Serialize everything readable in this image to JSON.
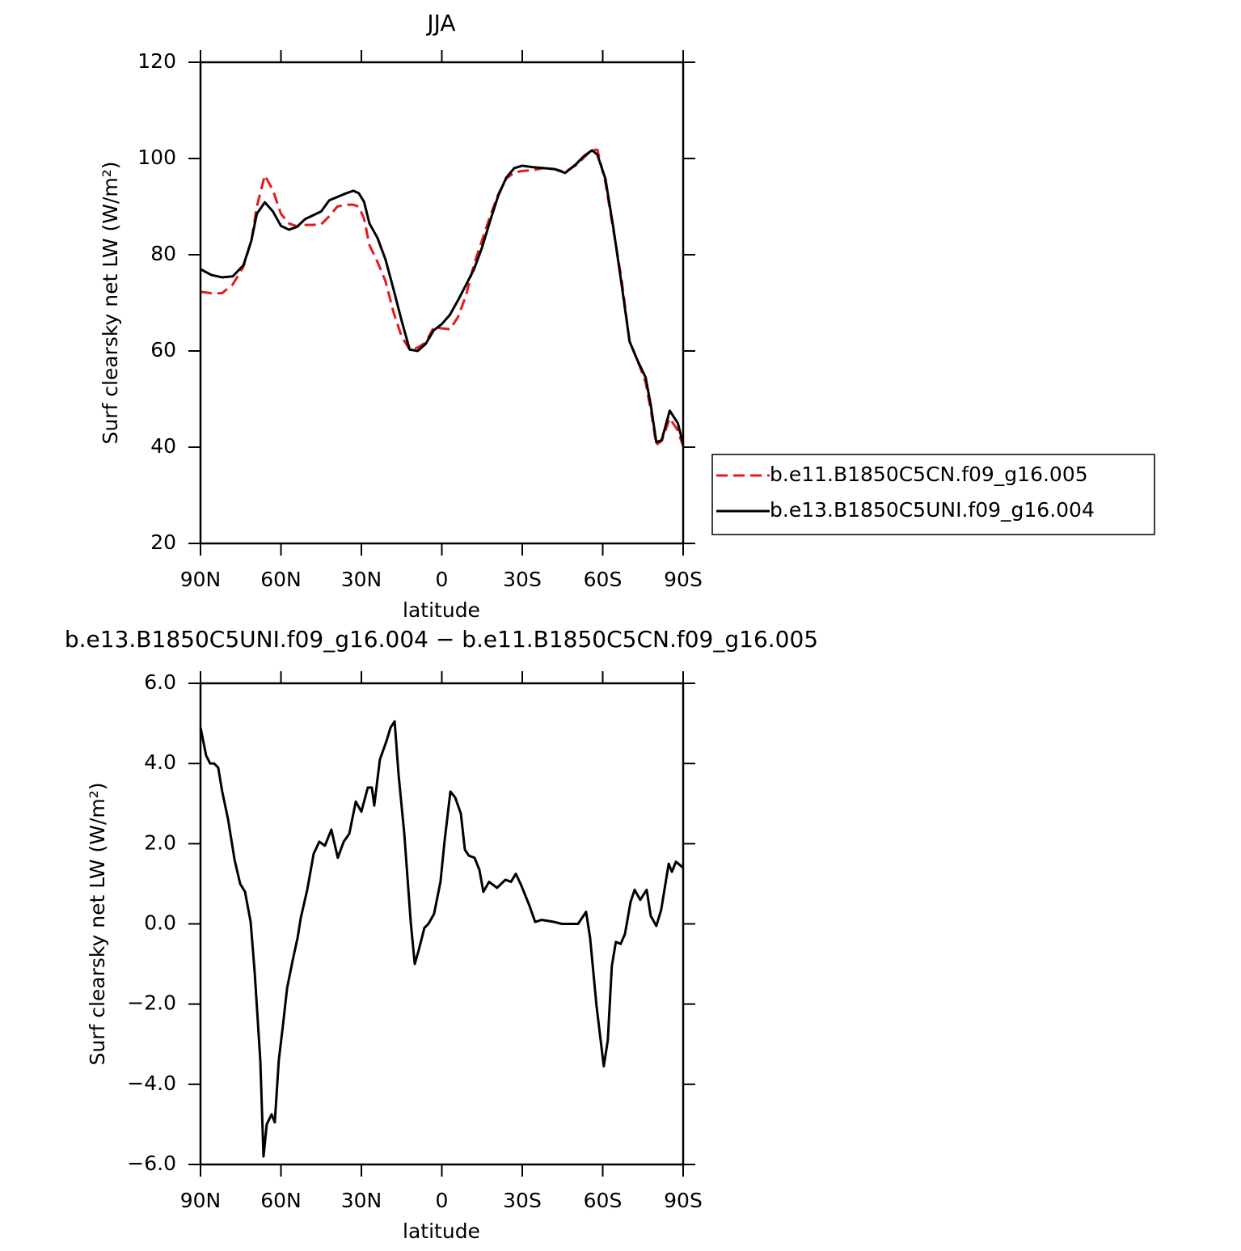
{
  "chart_data": [
    {
      "type": "line",
      "title": "JJA",
      "xlabel": "latitude",
      "ylabel": "Surf clearsky net LW (W/m²)",
      "x": [
        90,
        86,
        82,
        78,
        74,
        71,
        69,
        66,
        63,
        60,
        57,
        54,
        51,
        48,
        45,
        42,
        39,
        36,
        33,
        31,
        29,
        27,
        24,
        21,
        18,
        15,
        12,
        9,
        6,
        3,
        0,
        -3,
        -6,
        -9,
        -12,
        -15,
        -18,
        -21,
        -24,
        -27,
        -30,
        -34,
        -38,
        -42,
        -46,
        -50,
        -53,
        -56,
        -58,
        -61,
        -64,
        -67,
        -70,
        -73,
        -76,
        -78,
        -80,
        -82,
        -85,
        -88,
        -90
      ],
      "series": [
        {
          "name": "b.e11.B1850C5CN.f09_g16.005",
          "color": "#e41a1c",
          "dash": "dashed",
          "values": [
            72.3,
            72.0,
            72.0,
            73.8,
            77.5,
            83.0,
            90.0,
            96.5,
            93.4,
            88.5,
            86.5,
            85.9,
            86.2,
            86.2,
            86.3,
            88.0,
            90.0,
            90.4,
            90.4,
            90.0,
            87.5,
            82.0,
            78.5,
            74.5,
            68.0,
            63.0,
            60.3,
            60.7,
            61.8,
            64.9,
            64.7,
            64.5,
            67.0,
            71.5,
            78.0,
            83.0,
            88.0,
            92.5,
            95.8,
            97.1,
            97.4,
            97.6,
            98.0,
            97.8,
            97.2,
            98.6,
            100.2,
            101.8,
            101.8,
            95.0,
            85.0,
            75.0,
            62.0,
            58.0,
            53.5,
            47.5,
            40.5,
            41.3,
            46.0,
            43.5,
            40.2
          ]
        },
        {
          "name": "b.e13.B1850C5UNI.f09_g16.004",
          "color": "#000000",
          "dash": "solid",
          "values": [
            77.0,
            75.8,
            75.3,
            75.5,
            77.8,
            83.0,
            88.5,
            90.9,
            89.0,
            86.0,
            85.2,
            85.8,
            87.4,
            88.2,
            89.0,
            91.3,
            92.0,
            92.7,
            93.3,
            92.8,
            91.0,
            86.5,
            83.5,
            79.0,
            72.8,
            66.3,
            60.3,
            60.0,
            61.5,
            64.3,
            65.6,
            67.5,
            70.5,
            73.7,
            77.0,
            81.5,
            87.0,
            92.2,
            96.0,
            98.0,
            98.5,
            98.2,
            98.0,
            97.8,
            97.0,
            98.8,
            100.5,
            101.7,
            100.8,
            95.8,
            85.5,
            74.0,
            62.0,
            58.0,
            54.5,
            48.5,
            41.0,
            41.5,
            47.6,
            45.0,
            40.7
          ]
        }
      ],
      "xlim": [
        90,
        -90
      ],
      "xticks": [
        {
          "value": 90,
          "label": "90N"
        },
        {
          "value": 60,
          "label": "60N"
        },
        {
          "value": 30,
          "label": "30N"
        },
        0,
        {
          "value": -30,
          "label": "30S"
        },
        {
          "value": -60,
          "label": "60S"
        },
        {
          "value": -90,
          "label": "90S"
        }
      ],
      "ylim": [
        20,
        120
      ],
      "yticks": [
        20,
        40,
        60,
        80,
        100,
        120
      ],
      "legend": "right"
    },
    {
      "type": "line",
      "title": "b.e13.B1850C5UNI.f09_g16.004 − b.e11.B1850C5CN.f09_g16.005",
      "xlabel": "latitude",
      "ylabel": "Surf clearsky net LW (W/m²)",
      "x": [
        90,
        87.9,
        86.4,
        84.9,
        83.4,
        81.9,
        79.7,
        77.3,
        75.2,
        73.4,
        71.3,
        69.8,
        67.7,
        66.5,
        65.3,
        63.5,
        62.3,
        60.8,
        59.2,
        57.7,
        55.6,
        53.8,
        52.6,
        50.2,
        47.8,
        45.7,
        43.6,
        41.2,
        38.8,
        36.6,
        34.5,
        32.1,
        30.0,
        27.6,
        26.1,
        25.2,
        23.1,
        20.7,
        19.1,
        17.6,
        16.1,
        14.0,
        11.6,
        10.1,
        8.6,
        6.5,
        5.0,
        2.9,
        0.5,
        -1.0,
        -3.2,
        -5.0,
        -7.1,
        -8.6,
        -10.1,
        -12.2,
        -14.0,
        -15.5,
        -17.6,
        -20.6,
        -23.7,
        -25.8,
        -27.6,
        -29.7,
        -32.7,
        -34.8,
        -37.2,
        -41.8,
        -44.8,
        -47.8,
        -50.8,
        -53.8,
        -55.3,
        -57.7,
        -60.4,
        -61.9,
        -63.4,
        -64.9,
        -66.7,
        -68.3,
        -70.4,
        -71.9,
        -74.0,
        -76.4,
        -77.9,
        -80.0,
        -81.8,
        -84.6,
        -85.8,
        -87.3,
        -90
      ],
      "series": [
        {
          "name": "difference",
          "color": "#000000",
          "dash": "solid",
          "values": [
            4.9,
            4.2,
            4.0,
            4.0,
            3.9,
            3.3,
            2.6,
            1.6,
            1.0,
            0.8,
            0.05,
            -1.2,
            -3.4,
            -5.8,
            -5.0,
            -4.75,
            -4.95,
            -3.4,
            -2.5,
            -1.6,
            -0.9,
            -0.35,
            0.15,
            0.85,
            1.75,
            2.05,
            1.95,
            2.35,
            1.65,
            2.05,
            2.25,
            3.05,
            2.8,
            3.4,
            3.4,
            2.95,
            4.1,
            4.55,
            4.9,
            5.05,
            3.7,
            2.25,
            0.05,
            -1.0,
            -0.65,
            -0.1,
            0.0,
            0.25,
            1.05,
            2.05,
            3.3,
            3.15,
            2.75,
            1.85,
            1.7,
            1.65,
            1.35,
            0.8,
            1.05,
            0.9,
            1.1,
            1.05,
            1.25,
            0.95,
            0.45,
            0.05,
            0.1,
            0.05,
            0.0,
            0.0,
            0.0,
            0.3,
            -0.35,
            -2.05,
            -3.55,
            -2.9,
            -1.05,
            -0.45,
            -0.5,
            -0.25,
            0.55,
            0.85,
            0.6,
            0.85,
            0.2,
            -0.05,
            0.35,
            1.5,
            1.3,
            1.55,
            1.4
          ]
        }
      ],
      "xlim": [
        90,
        -90
      ],
      "xticks": [
        {
          "value": 90,
          "label": "90N"
        },
        {
          "value": 60,
          "label": "60N"
        },
        {
          "value": 30,
          "label": "30N"
        },
        0,
        {
          "value": -30,
          "label": "30S"
        },
        {
          "value": -60,
          "label": "60S"
        },
        {
          "value": -90,
          "label": "90S"
        }
      ],
      "ylim": [
        -6,
        6
      ],
      "yticks": [
        {
          "value": -6,
          "label": "−6.0"
        },
        {
          "value": -4,
          "label": "−4.0"
        },
        {
          "value": -2,
          "label": "−2.0"
        },
        {
          "value": 0,
          "label": "0.0"
        },
        {
          "value": 2,
          "label": "2.0"
        },
        {
          "value": 4,
          "label": "4.0"
        },
        {
          "value": 6,
          "label": "6.0"
        }
      ]
    }
  ]
}
